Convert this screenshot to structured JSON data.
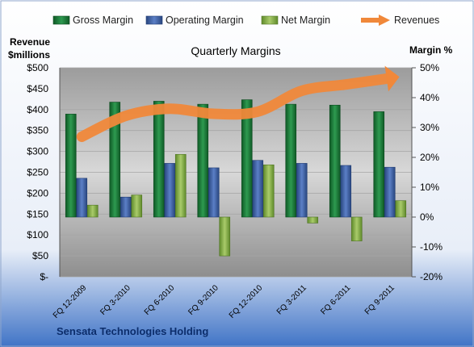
{
  "chart_data": {
    "type": "bar",
    "title": "Quarterly Margins",
    "left_axis_label_line1": "Revenue",
    "left_axis_label_line2": "$millions",
    "right_axis_label": "Margin %",
    "company": "Sensata Technologies Holding",
    "categories": [
      "FQ 12-2009",
      "FQ 3-2010",
      "FQ 6-2010",
      "FQ 9-2010",
      "FQ 12-2010",
      "FQ 3-2011",
      "FQ 6-2011",
      "FQ 9-2011"
    ],
    "left_ticks": [
      "$500",
      "$450",
      "$400",
      "$350",
      "$300",
      "$250",
      "$200",
      "$150",
      "$100",
      "$50",
      "$-"
    ],
    "right_ticks": [
      "50%",
      "40%",
      "30%",
      "20%",
      "10%",
      "0%",
      "-10%",
      "-20%"
    ],
    "left_ylim": [
      0,
      500
    ],
    "right_ylim": [
      -20,
      50
    ],
    "legend_position": "top",
    "series": [
      {
        "name": "Gross Margin",
        "axis": "right",
        "kind": "bar",
        "color": "#1e7b3c",
        "values": [
          34.5,
          38.5,
          38.8,
          37.8,
          39.3,
          37.8,
          37.5,
          35.3
        ]
      },
      {
        "name": "Operating Margin",
        "axis": "right",
        "kind": "bar",
        "color": "#3d5fa8",
        "values": [
          13.0,
          6.7,
          18.0,
          16.5,
          19.0,
          18.0,
          17.3,
          16.7
        ]
      },
      {
        "name": "Net Margin",
        "axis": "right",
        "kind": "bar",
        "color": "#8ab04a",
        "values": [
          4.0,
          7.4,
          21.0,
          -13.0,
          17.5,
          -2.0,
          -8.0,
          5.5
        ]
      },
      {
        "name": "Revenues",
        "axis": "left",
        "kind": "line",
        "color": "#f0883a",
        "values": [
          335,
          385,
          402,
          390,
          395,
          445,
          460,
          475
        ]
      }
    ]
  }
}
